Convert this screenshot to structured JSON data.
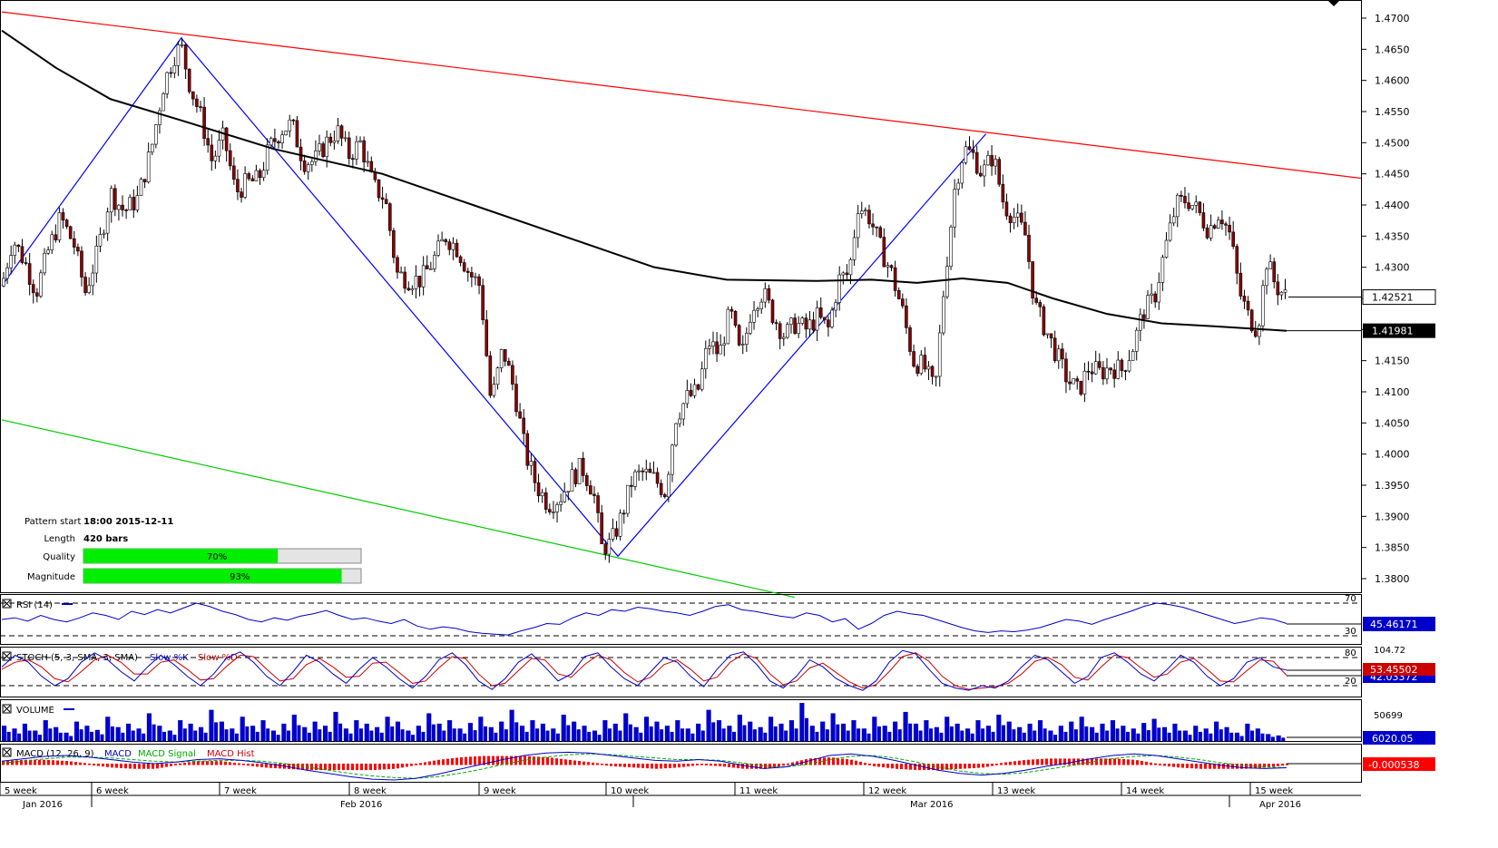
{
  "chart_data": {
    "type": "candlestick",
    "main_axis": {
      "ylim": [
        1.377,
        1.472
      ],
      "tick_labels": [
        "1.4700",
        "1.4650",
        "1.4600",
        "1.4550",
        "1.4500",
        "1.4450",
        "1.4400",
        "1.4350",
        "1.4300",
        "1.4250",
        "1.4200",
        "1.4150",
        "1.4100",
        "1.4050",
        "1.4000",
        "1.3950",
        "1.3900",
        "1.3850",
        "1.3800"
      ],
      "tick_values": [
        1.47,
        1.465,
        1.46,
        1.455,
        1.45,
        1.445,
        1.44,
        1.435,
        1.43,
        1.425,
        1.42,
        1.415,
        1.41,
        1.405,
        1.4,
        1.395,
        1.39,
        1.385,
        1.38
      ]
    },
    "price_labels": {
      "last": "1.42521",
      "last_value": 1.42521,
      "ma": "1.41981",
      "ma_value": 1.41981
    },
    "close_path": [
      [
        0,
        1.427
      ],
      [
        12,
        1.4345
      ],
      [
        25,
        1.431
      ],
      [
        38,
        1.426
      ],
      [
        52,
        1.433
      ],
      [
        65,
        1.438
      ],
      [
        80,
        1.4335
      ],
      [
        92,
        1.426
      ],
      [
        105,
        1.432
      ],
      [
        120,
        1.442
      ],
      [
        135,
        1.439
      ],
      [
        150,
        1.441
      ],
      [
        165,
        1.449
      ],
      [
        178,
        1.459
      ],
      [
        190,
        1.464
      ],
      [
        198,
        1.4655
      ],
      [
        208,
        1.459
      ],
      [
        220,
        1.454
      ],
      [
        232,
        1.447
      ],
      [
        245,
        1.451
      ],
      [
        258,
        1.442
      ],
      [
        270,
        1.4435
      ],
      [
        283,
        1.444
      ],
      [
        295,
        1.449
      ],
      [
        308,
        1.452
      ],
      [
        320,
        1.453
      ],
      [
        333,
        1.447
      ],
      [
        345,
        1.447
      ],
      [
        358,
        1.45
      ],
      [
        370,
        1.452
      ],
      [
        383,
        1.448
      ],
      [
        396,
        1.45
      ],
      [
        410,
        1.443
      ],
      [
        423,
        1.441
      ],
      [
        436,
        1.429
      ],
      [
        450,
        1.428
      ],
      [
        463,
        1.428
      ],
      [
        476,
        1.431
      ],
      [
        490,
        1.435
      ],
      [
        503,
        1.433
      ],
      [
        516,
        1.429
      ],
      [
        528,
        1.427
      ],
      [
        540,
        1.408
      ],
      [
        553,
        1.417
      ],
      [
        566,
        1.41
      ],
      [
        578,
        1.4
      ],
      [
        590,
        1.395
      ],
      [
        603,
        1.392
      ],
      [
        616,
        1.393
      ],
      [
        628,
        1.396
      ],
      [
        640,
        1.398
      ],
      [
        653,
        1.394
      ],
      [
        662,
        1.385
      ],
      [
        672,
        1.3855
      ],
      [
        684,
        1.39
      ],
      [
        696,
        1.396
      ],
      [
        708,
        1.397
      ],
      [
        720,
        1.396
      ],
      [
        732,
        1.394
      ],
      [
        744,
        1.406
      ],
      [
        756,
        1.409
      ],
      [
        768,
        1.41
      ],
      [
        780,
        1.418
      ],
      [
        792,
        1.416
      ],
      [
        804,
        1.423
      ],
      [
        816,
        1.415
      ],
      [
        828,
        1.424
      ],
      [
        840,
        1.426
      ],
      [
        852,
        1.422
      ],
      [
        864,
        1.419
      ],
      [
        876,
        1.421
      ],
      [
        888,
        1.42
      ],
      [
        900,
        1.422
      ],
      [
        912,
        1.42
      ],
      [
        924,
        1.428
      ],
      [
        935,
        1.429
      ],
      [
        945,
        1.44
      ],
      [
        958,
        1.438
      ],
      [
        970,
        1.433
      ],
      [
        982,
        1.429
      ],
      [
        994,
        1.423
      ],
      [
        1006,
        1.415
      ],
      [
        1018,
        1.414
      ],
      [
        1030,
        1.41
      ],
      [
        1040,
        1.427
      ],
      [
        1052,
        1.443
      ],
      [
        1062,
        1.449
      ],
      [
        1072,
        1.448
      ],
      [
        1082,
        1.445
      ],
      [
        1094,
        1.448
      ],
      [
        1106,
        1.44
      ],
      [
        1118,
        1.438
      ],
      [
        1130,
        1.435
      ],
      [
        1140,
        1.424
      ],
      [
        1152,
        1.42
      ],
      [
        1164,
        1.416
      ],
      [
        1176,
        1.412
      ],
      [
        1188,
        1.41
      ],
      [
        1200,
        1.414
      ],
      [
        1212,
        1.413
      ],
      [
        1224,
        1.414
      ],
      [
        1236,
        1.4135
      ],
      [
        1248,
        1.417
      ],
      [
        1260,
        1.423
      ],
      [
        1272,
        1.425
      ],
      [
        1284,
        1.433
      ],
      [
        1296,
        1.44
      ],
      [
        1308,
        1.441
      ],
      [
        1320,
        1.439
      ],
      [
        1332,
        1.436
      ],
      [
        1344,
        1.439
      ],
      [
        1356,
        1.435
      ],
      [
        1366,
        1.426
      ],
      [
        1376,
        1.422
      ],
      [
        1386,
        1.42
      ],
      [
        1396,
        1.431
      ],
      [
        1406,
        1.427
      ],
      [
        1418,
        1.4252
      ]
    ],
    "ma_line": [
      [
        0,
        1.468
      ],
      [
        60,
        1.462
      ],
      [
        120,
        1.457
      ],
      [
        200,
        1.4535
      ],
      [
        300,
        1.449
      ],
      [
        420,
        1.445
      ],
      [
        520,
        1.44
      ],
      [
        620,
        1.435
      ],
      [
        720,
        1.43
      ],
      [
        800,
        1.428
      ],
      [
        900,
        1.4278
      ],
      [
        960,
        1.428
      ],
      [
        1010,
        1.4275
      ],
      [
        1060,
        1.4282
      ],
      [
        1110,
        1.4275
      ],
      [
        1160,
        1.425
      ],
      [
        1220,
        1.4225
      ],
      [
        1280,
        1.421
      ],
      [
        1340,
        1.4205
      ],
      [
        1418,
        1.4198
      ]
    ],
    "overlay_lines": [
      {
        "color": "#ff0000",
        "points": [
          [
            0,
            1.471
          ],
          [
            1500,
            1.4443
          ]
        ]
      },
      {
        "color": "#00cc00",
        "points": [
          [
            0,
            1.4055
          ],
          [
            875,
            1.377
          ]
        ]
      },
      {
        "color": "#0000ff",
        "points": [
          [
            0,
            1.427
          ],
          [
            198,
            1.4668
          ],
          [
            680,
            1.3836
          ],
          [
            1086,
            1.4514
          ]
        ]
      }
    ],
    "time_axis": {
      "week_labels": [
        "5 week",
        "6 week",
        "7 week",
        "8 week",
        "9 week",
        "10 week",
        "11 week",
        "12 week",
        "13 week",
        "14 week",
        "15 week"
      ],
      "week_positions": [
        0,
        101,
        242,
        385,
        528,
        668,
        810,
        952,
        1094,
        1236,
        1378
      ],
      "month_labels": [
        "Jan 2016",
        "Feb 2016",
        "Mar 2016",
        "Apr 2016"
      ],
      "month_positions": [
        25,
        375,
        1003,
        1388
      ]
    },
    "pattern_info": {
      "pattern_start_label": "Pattern start",
      "pattern_start_value": "18:00 2015-12-11",
      "length_label": "Length",
      "length_value": "420 bars",
      "quality_label": "Quality",
      "quality_value": "70%",
      "quality": 0.7,
      "magnitude_label": "Magnitude",
      "magnitude_value": "93%",
      "magnitude": 0.93
    },
    "indicators": {
      "rsi": {
        "title": "RSI (14)",
        "levels": [
          70,
          30
        ],
        "level_labels": [
          "70",
          "30"
        ],
        "value_label": "45.46171",
        "series": [
          50,
          52,
          48,
          55,
          50,
          47,
          52,
          58,
          55,
          50,
          60,
          56,
          62,
          58,
          64,
          70,
          66,
          60,
          56,
          50,
          47,
          52,
          49,
          54,
          57,
          61,
          55,
          50,
          52,
          48,
          45,
          50,
          42,
          38,
          41,
          39,
          35,
          33,
          32,
          31,
          36,
          40,
          45,
          44,
          52,
          58,
          55,
          62,
          60,
          65,
          63,
          60,
          58,
          55,
          60,
          66,
          68,
          62,
          60,
          57,
          54,
          52,
          58,
          55,
          47,
          51,
          38,
          45,
          55,
          60,
          57,
          55,
          50,
          45,
          40,
          36,
          34,
          36,
          35,
          37,
          40,
          45,
          50,
          48,
          44,
          50,
          55,
          60,
          66,
          70,
          68,
          65,
          60,
          55,
          50,
          45,
          48,
          52,
          50,
          45
        ]
      },
      "stoch": {
        "title": "STOCH (5, 3, SMA, 3, SMA)",
        "k_label": "Slow %K",
        "d_label": "Slow %D",
        "levels": [
          80,
          20
        ],
        "level_labels": [
          "80",
          "20"
        ],
        "max_label": "104.72",
        "k_value_label": "53.45502",
        "d_value_label": "42.03372",
        "k_series": [
          60,
          85,
          70,
          40,
          20,
          35,
          70,
          90,
          75,
          50,
          30,
          60,
          85,
          65,
          40,
          20,
          45,
          80,
          92,
          70,
          40,
          20,
          50,
          85,
          70,
          45,
          25,
          55,
          80,
          60,
          35,
          15,
          40,
          75,
          90,
          65,
          30,
          12,
          35,
          70,
          88,
          60,
          30,
          45,
          82,
          90,
          60,
          35,
          20,
          50,
          80,
          70,
          40,
          18,
          55,
          85,
          92,
          65,
          30,
          15,
          40,
          75,
          60,
          35,
          20,
          10,
          30,
          70,
          95,
          88,
          55,
          25,
          15,
          10,
          20,
          15,
          30,
          60,
          85,
          75,
          50,
          25,
          40,
          80,
          90,
          70,
          45,
          30,
          55,
          85,
          70,
          40,
          20,
          35,
          70,
          80,
          60,
          53
        ],
        "d_series": [
          55,
          70,
          75,
          60,
          35,
          28,
          50,
          75,
          85,
          70,
          45,
          45,
          70,
          75,
          55,
          32,
          35,
          62,
          85,
          82,
          55,
          30,
          35,
          65,
          78,
          60,
          38,
          40,
          68,
          70,
          48,
          25,
          30,
          58,
          82,
          78,
          45,
          20,
          25,
          52,
          78,
          75,
          45,
          38,
          65,
          85,
          75,
          48,
          28,
          38,
          65,
          75,
          55,
          30,
          38,
          70,
          88,
          78,
          45,
          22,
          30,
          58,
          68,
          48,
          28,
          15,
          22,
          50,
          82,
          90,
          72,
          40,
          20,
          12,
          15,
          18,
          25,
          45,
          72,
          80,
          65,
          38,
          32,
          60,
          85,
          80,
          58,
          38,
          45,
          70,
          78,
          55,
          30,
          28,
          52,
          75,
          72,
          42
        ]
      },
      "volume": {
        "title": "VOLUME",
        "max_label": "50699",
        "value_label": "6020.05",
        "bars": [
          22,
          18,
          25,
          15,
          30,
          20,
          12,
          28,
          22,
          16,
          35,
          20,
          25,
          18,
          40,
          22,
          15,
          30,
          25,
          20,
          45,
          28,
          18,
          35,
          22,
          30,
          15,
          25,
          38,
          20,
          28,
          22,
          42,
          18,
          30,
          25,
          20,
          35,
          28,
          15,
          22,
          40,
          25,
          30,
          18,
          26,
          35,
          20,
          28,
          45,
          22,
          30,
          25,
          18,
          38,
          28,
          22,
          15,
          30,
          25,
          40,
          20,
          35,
          28,
          22,
          30,
          18,
          25,
          45,
          30,
          22,
          38,
          28,
          20,
          35,
          25,
          30,
          55,
          22,
          28,
          40,
          25,
          30,
          18,
          35,
          22,
          28,
          42,
          25,
          30,
          20,
          35,
          25,
          18,
          30,
          22,
          38,
          28,
          20,
          25,
          30,
          15,
          22,
          28,
          35,
          20,
          25,
          30,
          22,
          18,
          26,
          32,
          20,
          25,
          15,
          22,
          18,
          28,
          20,
          12,
          25,
          18,
          10,
          8
        ]
      },
      "macd": {
        "title": "MACD (12, 26, 9)",
        "macd_label": "MACD",
        "signal_label": "MACD Signal",
        "hist_label": "MACD Hist",
        "value_label": "-0.000538",
        "macd_series": [
          0.3,
          0.6,
          0.9,
          1.0,
          0.8,
          0.5,
          0.2,
          0.0,
          0.2,
          0.5,
          0.6,
          0.4,
          0.1,
          -0.3,
          -0.8,
          -1.2,
          -1.6,
          -1.9,
          -2.0,
          -1.8,
          -1.3,
          -0.7,
          -0.1,
          0.5,
          1.0,
          1.3,
          1.4,
          1.3,
          1.0,
          0.7,
          0.4,
          0.3,
          0.5,
          0.3,
          -0.2,
          -0.6,
          -0.4,
          0.3,
          1.0,
          1.2,
          0.9,
          0.4,
          -0.2,
          -0.8,
          -1.2,
          -1.4,
          -1.2,
          -0.8,
          -0.3,
          0.1,
          0.6,
          1.0,
          1.2,
          1.0,
          0.6,
          0.2,
          -0.2,
          -0.5,
          -0.6,
          -0.5
        ],
        "signal_series": [
          0.1,
          0.3,
          0.6,
          0.8,
          0.8,
          0.7,
          0.5,
          0.3,
          0.2,
          0.3,
          0.4,
          0.4,
          0.3,
          0.0,
          -0.4,
          -0.8,
          -1.2,
          -1.5,
          -1.7,
          -1.8,
          -1.6,
          -1.2,
          -0.7,
          -0.1,
          0.4,
          0.8,
          1.1,
          1.2,
          1.1,
          0.9,
          0.7,
          0.5,
          0.5,
          0.4,
          0.1,
          -0.3,
          -0.4,
          -0.1,
          0.5,
          0.9,
          1.0,
          0.7,
          0.2,
          -0.4,
          -0.9,
          -1.2,
          -1.3,
          -1.1,
          -0.7,
          -0.3,
          0.2,
          0.6,
          0.9,
          1.0,
          0.8,
          0.5,
          0.1,
          -0.2,
          -0.4,
          -0.5
        ]
      }
    }
  }
}
